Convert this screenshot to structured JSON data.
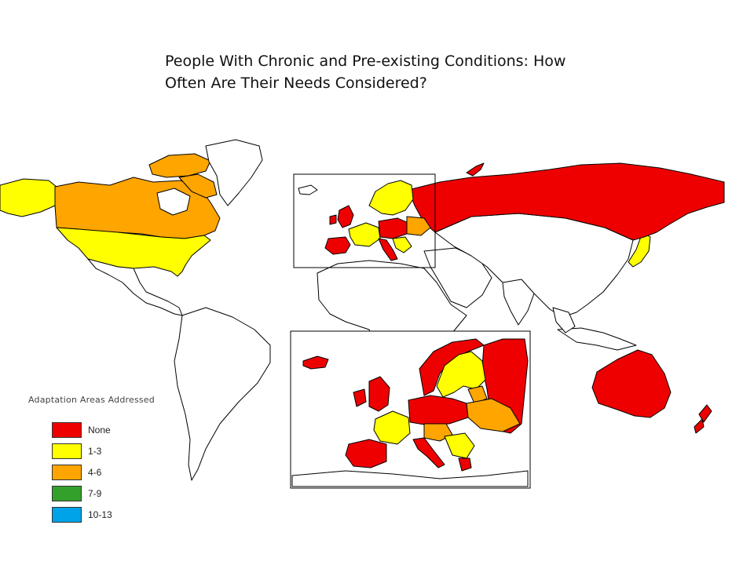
{
  "title": {
    "line1": "People With Chronic and Pre-existing Conditions: How",
    "line2": "Often Are Their Needs Considered?"
  },
  "legend": {
    "title": "Adaptation Areas Addressed",
    "items": [
      {
        "label": "None",
        "color": "#ee0000"
      },
      {
        "label": "1-3",
        "color": "#ffff00"
      },
      {
        "label": "4-6",
        "color": "#ffa500"
      },
      {
        "label": "7-9",
        "color": "#33a02c"
      },
      {
        "label": "10-13",
        "color": "#00a2e8"
      }
    ]
  },
  "palette": {
    "none": "#ee0000",
    "low": "#ffff00",
    "mid": "#ffa500",
    "unshaded": "#ffffff",
    "border": "#000000"
  }
}
